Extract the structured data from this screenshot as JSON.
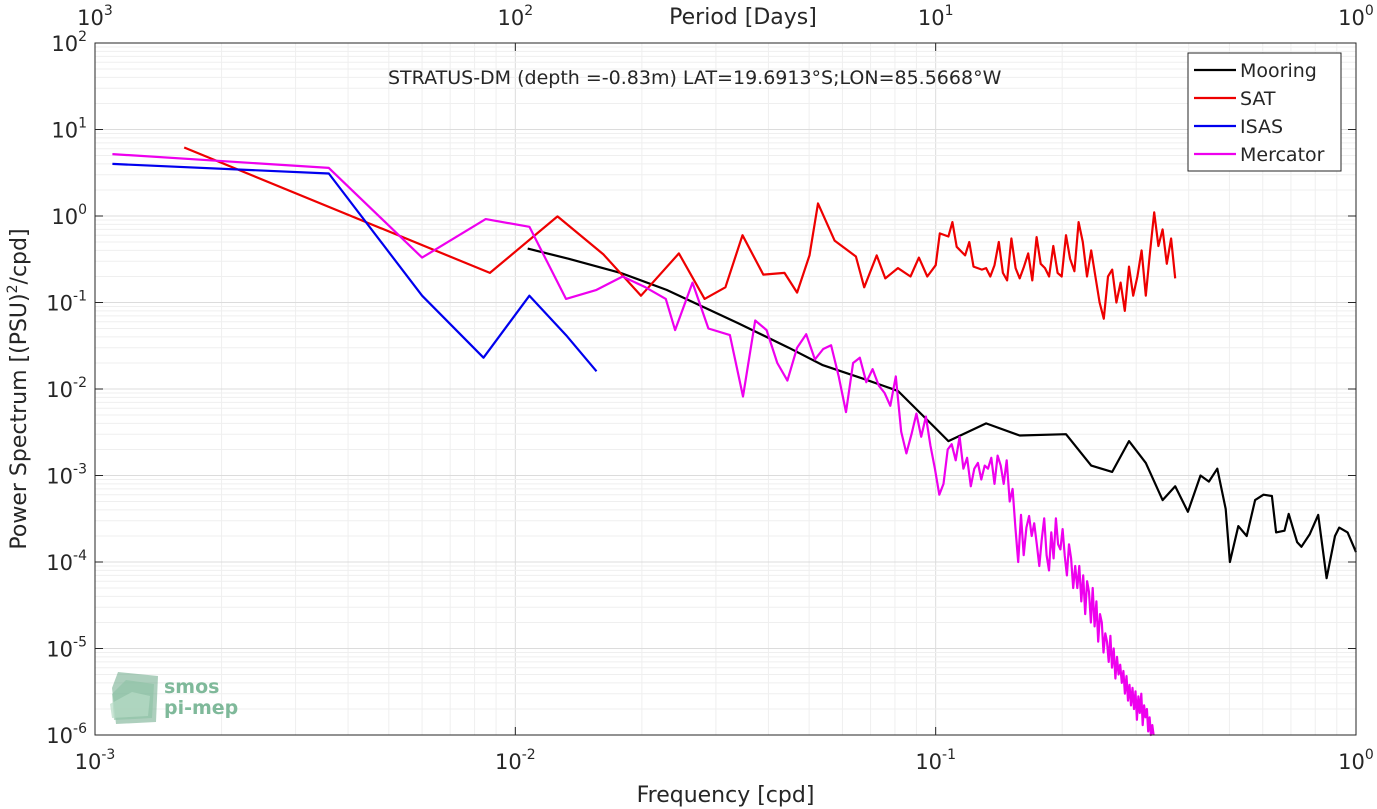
{
  "chart_data": {
    "type": "line",
    "title": "",
    "annotation": "STRATUS-DM (depth =-0.83m) LAT=19.6913°S;LON=85.5668°W",
    "xlabel": "Frequency [cpd]",
    "ylabel": "Power Spectrum [(PSU)",
    "ylabel_sup": "2",
    "ylabel_tail": "/cpd]",
    "top_xlabel": "Period [Days]",
    "xscale": "log",
    "yscale": "log",
    "xlim": [
      0.001,
      1
    ],
    "ylim": [
      1e-06,
      100
    ],
    "grid": true,
    "legend_position": "top-right",
    "x_ticks": [
      {
        "value": 0.001,
        "base": "10",
        "exp": "-3"
      },
      {
        "value": 0.01,
        "base": "10",
        "exp": "-2"
      },
      {
        "value": 0.1,
        "base": "10",
        "exp": "-1"
      },
      {
        "value": 1,
        "base": "10",
        "exp": "0"
      }
    ],
    "top_ticks": [
      {
        "value": 0.001,
        "base": "10",
        "exp": "3"
      },
      {
        "value": 0.01,
        "base": "10",
        "exp": "2"
      },
      {
        "value": 0.1,
        "base": "10",
        "exp": "1"
      },
      {
        "value": 1,
        "base": "10",
        "exp": "0"
      }
    ],
    "y_ticks": [
      {
        "value": 100,
        "base": "10",
        "exp": "2"
      },
      {
        "value": 10,
        "base": "10",
        "exp": "1"
      },
      {
        "value": 1,
        "base": "10",
        "exp": "0"
      },
      {
        "value": 0.1,
        "base": "10",
        "exp": "-1"
      },
      {
        "value": 0.01,
        "base": "10",
        "exp": "-2"
      },
      {
        "value": 0.001,
        "base": "10",
        "exp": "-3"
      },
      {
        "value": 0.0001,
        "base": "10",
        "exp": "-4"
      },
      {
        "value": 1e-05,
        "base": "10",
        "exp": "-5"
      },
      {
        "value": 1e-06,
        "base": "10",
        "exp": "-6"
      }
    ],
    "series": [
      {
        "name": "Mooring",
        "color": "#000000",
        "points": [
          [
            0.0107,
            0.42
          ],
          [
            0.0134,
            0.32
          ],
          [
            0.0178,
            0.22
          ],
          [
            0.0229,
            0.14
          ],
          [
            0.0338,
            0.058
          ],
          [
            0.0447,
            0.03
          ],
          [
            0.0537,
            0.019
          ],
          [
            0.0676,
            0.013
          ],
          [
            0.0813,
            0.0095
          ],
          [
            0.1,
            0.0035
          ],
          [
            0.1072,
            0.0025
          ],
          [
            0.1318,
            0.004
          ],
          [
            0.1585,
            0.0029
          ],
          [
            0.2042,
            0.003
          ],
          [
            0.2344,
            0.0013
          ],
          [
            0.263,
            0.0011
          ],
          [
            0.2884,
            0.0025
          ],
          [
            0.3162,
            0.0014
          ],
          [
            0.3467,
            0.00052
          ],
          [
            0.3715,
            0.00075
          ],
          [
            0.3981,
            0.00038
          ],
          [
            0.4266,
            0.001
          ],
          [
            0.4467,
            0.00085
          ],
          [
            0.4677,
            0.0012
          ],
          [
            0.4898,
            0.00041
          ],
          [
            0.5012,
            0.0001
          ],
          [
            0.5248,
            0.00026
          ],
          [
            0.5495,
            0.0002
          ],
          [
            0.5754,
            0.00052
          ],
          [
            0.6026,
            0.0006
          ],
          [
            0.631,
            0.00058
          ],
          [
            0.6457,
            0.00022
          ],
          [
            0.6761,
            0.00023
          ],
          [
            0.6918,
            0.00036
          ],
          [
            0.7244,
            0.00017
          ],
          [
            0.7413,
            0.00015
          ],
          [
            0.7762,
            0.00021
          ],
          [
            0.8128,
            0.00035
          ],
          [
            0.8511,
            6.5e-05
          ],
          [
            0.8913,
            0.0002
          ],
          [
            0.912,
            0.00025
          ],
          [
            0.955,
            0.00022
          ],
          [
            1.0,
            0.00013
          ]
        ]
      },
      {
        "name": "SAT",
        "color": "#ee0000",
        "points": [
          [
            0.00163,
            6.2
          ],
          [
            0.0087,
            0.22
          ],
          [
            0.0126,
            0.99
          ],
          [
            0.0162,
            0.36
          ],
          [
            0.0199,
            0.12
          ],
          [
            0.0245,
            0.37
          ],
          [
            0.0282,
            0.11
          ],
          [
            0.0316,
            0.15
          ],
          [
            0.0347,
            0.6
          ],
          [
            0.0389,
            0.21
          ],
          [
            0.0437,
            0.22
          ],
          [
            0.0468,
            0.13
          ],
          [
            0.0501,
            0.35
          ],
          [
            0.0525,
            1.4
          ],
          [
            0.0575,
            0.52
          ],
          [
            0.0646,
            0.34
          ],
          [
            0.0676,
            0.15
          ],
          [
            0.0724,
            0.35
          ],
          [
            0.0759,
            0.19
          ],
          [
            0.0813,
            0.25
          ],
          [
            0.0871,
            0.2
          ],
          [
            0.0912,
            0.33
          ],
          [
            0.0955,
            0.2
          ],
          [
            0.1,
            0.27
          ],
          [
            0.1023,
            0.63
          ],
          [
            0.1072,
            0.58
          ],
          [
            0.1096,
            0.85
          ],
          [
            0.1122,
            0.44
          ],
          [
            0.1175,
            0.35
          ],
          [
            0.1202,
            0.5
          ],
          [
            0.123,
            0.26
          ],
          [
            0.1288,
            0.24
          ],
          [
            0.1318,
            0.25
          ],
          [
            0.1349,
            0.2
          ],
          [
            0.138,
            0.27
          ],
          [
            0.1413,
            0.5
          ],
          [
            0.1445,
            0.22
          ],
          [
            0.1479,
            0.18
          ],
          [
            0.1514,
            0.55
          ],
          [
            0.1549,
            0.25
          ],
          [
            0.1585,
            0.19
          ],
          [
            0.1622,
            0.26
          ],
          [
            0.166,
            0.37
          ],
          [
            0.1698,
            0.18
          ],
          [
            0.1738,
            0.57
          ],
          [
            0.1778,
            0.28
          ],
          [
            0.182,
            0.25
          ],
          [
            0.1862,
            0.2
          ],
          [
            0.1905,
            0.45
          ],
          [
            0.195,
            0.22
          ],
          [
            0.1995,
            0.2
          ],
          [
            0.2042,
            0.6
          ],
          [
            0.2089,
            0.32
          ],
          [
            0.2138,
            0.23
          ],
          [
            0.2188,
            0.85
          ],
          [
            0.2239,
            0.5
          ],
          [
            0.2291,
            0.2
          ],
          [
            0.2344,
            0.4
          ],
          [
            0.2399,
            0.2
          ],
          [
            0.2455,
            0.1
          ],
          [
            0.2512,
            0.065
          ],
          [
            0.257,
            0.2
          ],
          [
            0.263,
            0.24
          ],
          [
            0.2692,
            0.1
          ],
          [
            0.2754,
            0.17
          ],
          [
            0.2818,
            0.08
          ],
          [
            0.2884,
            0.26
          ],
          [
            0.2951,
            0.12
          ],
          [
            0.302,
            0.2
          ],
          [
            0.309,
            0.4
          ],
          [
            0.3162,
            0.12
          ],
          [
            0.3236,
            0.38
          ],
          [
            0.3311,
            1.1
          ],
          [
            0.3388,
            0.45
          ],
          [
            0.3467,
            0.7
          ],
          [
            0.3548,
            0.28
          ],
          [
            0.3631,
            0.55
          ],
          [
            0.3715,
            0.19
          ]
        ]
      },
      {
        "name": "ISAS",
        "color": "#0000ee",
        "points": [
          [
            0.0011,
            4.0
          ],
          [
            0.0036,
            3.1
          ],
          [
            0.006,
            0.12
          ],
          [
            0.0084,
            0.023
          ],
          [
            0.0108,
            0.12
          ],
          [
            0.0132,
            0.042
          ],
          [
            0.0156,
            0.016
          ]
        ]
      },
      {
        "name": "Mercator",
        "color": "#ee00ee",
        "points": [
          [
            0.0011,
            5.2
          ],
          [
            0.0036,
            3.6
          ],
          [
            0.006,
            0.33
          ],
          [
            0.0085,
            0.92
          ],
          [
            0.0108,
            0.75
          ],
          [
            0.0132,
            0.11
          ],
          [
            0.0156,
            0.14
          ],
          [
            0.018,
            0.2
          ],
          [
            0.0204,
            0.15
          ],
          [
            0.0228,
            0.11
          ],
          [
            0.024,
            0.048
          ],
          [
            0.0264,
            0.17
          ],
          [
            0.0288,
            0.05
          ],
          [
            0.0324,
            0.042
          ],
          [
            0.0348,
            0.0082
          ],
          [
            0.0372,
            0.062
          ],
          [
            0.0396,
            0.048
          ],
          [
            0.042,
            0.02
          ],
          [
            0.0444,
            0.0125
          ],
          [
            0.0468,
            0.03
          ],
          [
            0.0492,
            0.043
          ],
          [
            0.0516,
            0.022
          ],
          [
            0.054,
            0.029
          ],
          [
            0.0564,
            0.032
          ],
          [
            0.0588,
            0.014
          ],
          [
            0.0612,
            0.0054
          ],
          [
            0.0636,
            0.02
          ],
          [
            0.066,
            0.023
          ],
          [
            0.0684,
            0.012
          ],
          [
            0.0708,
            0.017
          ],
          [
            0.0732,
            0.011
          ],
          [
            0.0756,
            0.009
          ],
          [
            0.078,
            0.0064
          ],
          [
            0.0804,
            0.014
          ],
          [
            0.0828,
            0.0032
          ],
          [
            0.0852,
            0.0018
          ],
          [
            0.0876,
            0.003
          ],
          [
            0.09,
            0.0052
          ],
          [
            0.0924,
            0.0028
          ],
          [
            0.0948,
            0.0048
          ],
          [
            0.0972,
            0.0022
          ],
          [
            0.0996,
            0.0012
          ],
          [
            0.102,
            0.0006
          ],
          [
            0.1044,
            0.0008
          ],
          [
            0.1068,
            0.002
          ],
          [
            0.1092,
            0.0023
          ],
          [
            0.1116,
            0.0015
          ],
          [
            0.114,
            0.0028
          ],
          [
            0.1164,
            0.0012
          ],
          [
            0.1188,
            0.0016
          ],
          [
            0.1212,
            0.00075
          ],
          [
            0.1236,
            0.0012
          ],
          [
            0.126,
            0.0014
          ],
          [
            0.1284,
            0.0009
          ],
          [
            0.1308,
            0.0013
          ],
          [
            0.1332,
            0.0012
          ],
          [
            0.1356,
            0.0016
          ],
          [
            0.138,
            0.0008
          ],
          [
            0.1404,
            0.0017
          ],
          [
            0.1428,
            0.0013
          ],
          [
            0.1452,
            0.0008
          ],
          [
            0.1476,
            0.0015
          ],
          [
            0.15,
            0.0005
          ],
          [
            0.1524,
            0.0007
          ],
          [
            0.1548,
            0.00025
          ],
          [
            0.1572,
            0.0001
          ],
          [
            0.1596,
            0.00035
          ],
          [
            0.162,
            0.00012
          ],
          [
            0.1644,
            0.00025
          ],
          [
            0.1668,
            0.00034
          ],
          [
            0.1692,
            0.0002
          ],
          [
            0.1716,
            0.00028
          ],
          [
            0.174,
            0.00016
          ],
          [
            0.1764,
            9e-05
          ],
          [
            0.1788,
            0.00018
          ],
          [
            0.1812,
            0.00032
          ],
          [
            0.1836,
            0.00012
          ],
          [
            0.186,
            8e-05
          ],
          [
            0.1884,
            0.00022
          ],
          [
            0.1908,
            0.00011
          ],
          [
            0.1932,
            0.00032
          ],
          [
            0.1956,
            0.00016
          ],
          [
            0.198,
            0.00014
          ],
          [
            0.2004,
            0.00024
          ],
          [
            0.2028,
            0.00012
          ],
          [
            0.2052,
            7e-05
          ],
          [
            0.2076,
            0.00016
          ],
          [
            0.21,
            0.00011
          ],
          [
            0.2124,
            5e-05
          ],
          [
            0.2148,
            9e-05
          ],
          [
            0.2172,
            5e-05
          ],
          [
            0.2196,
            9e-05
          ],
          [
            0.222,
            3.5e-05
          ],
          [
            0.2244,
            7e-05
          ],
          [
            0.2268,
            2.5e-05
          ],
          [
            0.2292,
            6e-05
          ],
          [
            0.2316,
            4.5e-05
          ],
          [
            0.234,
            2e-05
          ],
          [
            0.2364,
            5e-05
          ],
          [
            0.2388,
            1.8e-05
          ],
          [
            0.2412,
            3.5e-05
          ],
          [
            0.2436,
            1.2e-05
          ],
          [
            0.246,
            2.5e-05
          ],
          [
            0.2484,
            2e-05
          ],
          [
            0.2508,
            9e-06
          ],
          [
            0.2532,
            1.5e-05
          ],
          [
            0.2556,
            1.2e-05
          ],
          [
            0.258,
            7e-06
          ],
          [
            0.2604,
            1.4e-05
          ],
          [
            0.2628,
            6e-06
          ],
          [
            0.2652,
            1e-05
          ],
          [
            0.2676,
            4.5e-06
          ],
          [
            0.27,
            8e-06
          ],
          [
            0.2724,
            5e-06
          ],
          [
            0.2748,
            6.5e-06
          ],
          [
            0.2772,
            4e-06
          ],
          [
            0.2796,
            5.5e-06
          ],
          [
            0.282,
            3e-06
          ],
          [
            0.2844,
            4.8e-06
          ],
          [
            0.2868,
            2.5e-06
          ],
          [
            0.2892,
            3.8e-06
          ],
          [
            0.2916,
            2.2e-06
          ],
          [
            0.294,
            3.5e-06
          ],
          [
            0.2964,
            2e-06
          ],
          [
            0.2988,
            3.2e-06
          ],
          [
            0.3012,
            1.5e-06
          ],
          [
            0.3036,
            2.8e-06
          ],
          [
            0.306,
            1.8e-06
          ],
          [
            0.3084,
            3e-06
          ],
          [
            0.3108,
            1.3e-06
          ],
          [
            0.3132,
            2.2e-06
          ],
          [
            0.3156,
            1.6e-06
          ],
          [
            0.318,
            2e-06
          ],
          [
            0.3204,
            1.1e-06
          ],
          [
            0.3228,
            1.6e-06
          ],
          [
            0.3252,
            9.5e-07
          ],
          [
            0.3276,
            1.3e-06
          ],
          [
            0.33,
            9.8e-07
          ]
        ]
      }
    ]
  },
  "logo": {
    "line1": "smos",
    "line2": "pi-mep"
  }
}
